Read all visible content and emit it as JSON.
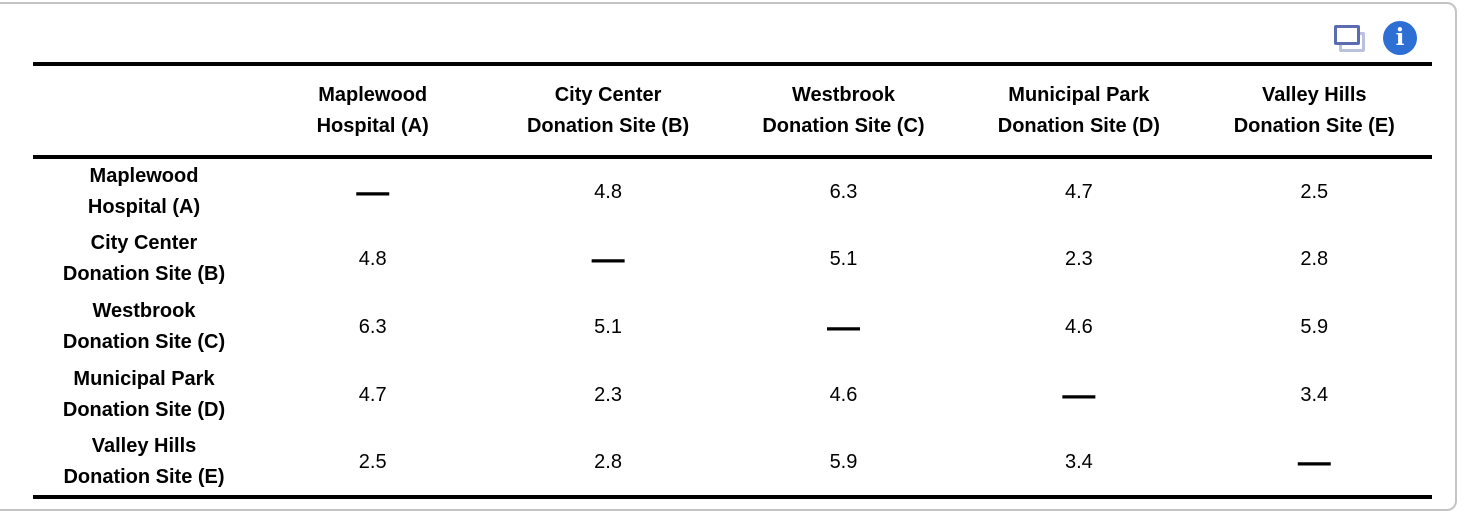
{
  "panel": {
    "background": "#ffffff",
    "border_color": "#c4c4c4",
    "rule_color": "#000000"
  },
  "toolbar": {
    "icons": [
      {
        "name": "duplicate-icon",
        "front_color": "#5b6cb0",
        "back_color": "#b9c1dd"
      },
      {
        "name": "info-icon",
        "circle_color": "#2e6fd3",
        "glyph": "i",
        "glyph_color": "#ffffff"
      }
    ]
  },
  "chart_data": {
    "type": "table",
    "columns": [
      [
        "Maplewood",
        "Hospital (A)"
      ],
      [
        "City Center",
        "Donation Site (B)"
      ],
      [
        "Westbrook",
        "Donation Site (C)"
      ],
      [
        "Municipal Park",
        "Donation Site (D)"
      ],
      [
        "Valley Hills",
        "Donation Site (E)"
      ]
    ],
    "rows": [
      [
        "Maplewood",
        "Hospital (A)"
      ],
      [
        "City Center",
        "Donation Site (B)"
      ],
      [
        "Westbrook",
        "Donation Site (C)"
      ],
      [
        "Municipal Park",
        "Donation Site (D)"
      ],
      [
        "Valley Hills",
        "Donation Site (E)"
      ]
    ],
    "diagonal_marker": "—",
    "values": [
      [
        "—",
        "4.8",
        "6.3",
        "4.7",
        "2.5"
      ],
      [
        "4.8",
        "—",
        "5.1",
        "2.3",
        "2.8"
      ],
      [
        "6.3",
        "5.1",
        "—",
        "4.6",
        "5.9"
      ],
      [
        "4.7",
        "2.3",
        "4.6",
        "—",
        "3.4"
      ],
      [
        "2.5",
        "2.8",
        "5.9",
        "3.4",
        "—"
      ]
    ]
  }
}
